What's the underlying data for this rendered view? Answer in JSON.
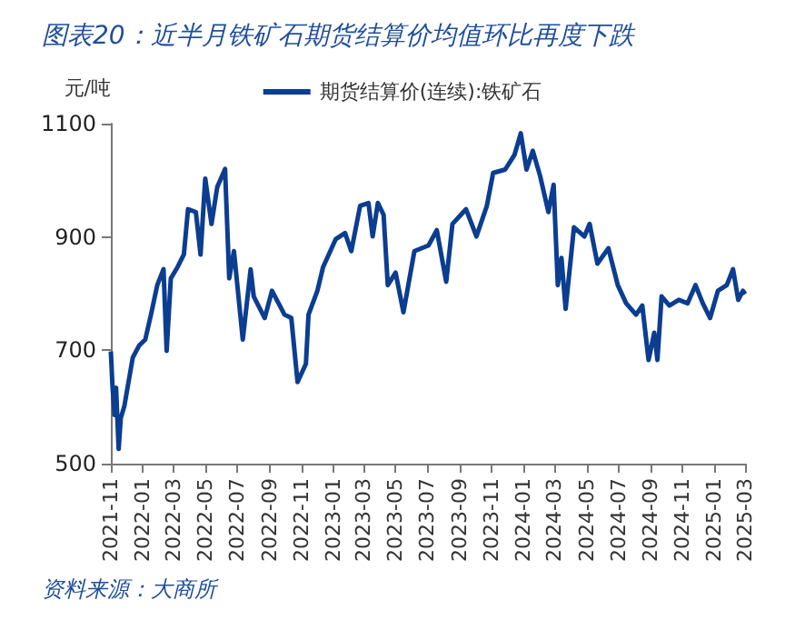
{
  "chart_data": {
    "type": "line",
    "title": "图表20：近半月铁矿石期货结算价均值环比再度下跌",
    "ylabel": "元/吨",
    "annotations": [
      "资料来源：大商所"
    ],
    "x": [
      "2021-11-01",
      "2021-11-04",
      "2021-11-08",
      "2021-11-11",
      "2021-11-16",
      "2021-11-20",
      "2021-11-27",
      "2021-12-13",
      "2021-12-25",
      "2022-01-06",
      "2022-01-17",
      "2022-01-29",
      "2022-02-10",
      "2022-02-16",
      "2022-02-24",
      "2022-03-09",
      "2022-03-21",
      "2022-03-29",
      "2022-04-13",
      "2022-04-22",
      "2022-05-01",
      "2022-05-13",
      "2022-05-24",
      "2022-06-08",
      "2022-06-16",
      "2022-06-25",
      "2022-07-12",
      "2022-07-27",
      "2022-08-02",
      "2022-08-23",
      "2022-09-06",
      "2022-09-30",
      "2022-10-13",
      "2022-10-25",
      "2022-11-10",
      "2022-11-15",
      "2022-12-02",
      "2022-12-13",
      "2023-01-06",
      "2023-01-24",
      "2023-02-05",
      "2023-02-22",
      "2023-03-10",
      "2023-03-18",
      "2023-03-28",
      "2023-04-08",
      "2023-04-16",
      "2023-05-01",
      "2023-05-16",
      "2023-06-06",
      "2023-07-03",
      "2023-07-19",
      "2023-08-06",
      "2023-08-18",
      "2023-09-13",
      "2023-10-03",
      "2023-10-23",
      "2023-11-04",
      "2023-11-27",
      "2023-12-15",
      "2023-12-27",
      "2024-01-07",
      "2024-01-19",
      "2024-02-02",
      "2024-02-18",
      "2024-02-28",
      "2024-03-07",
      "2024-03-14",
      "2024-03-22",
      "2024-04-07",
      "2024-04-27",
      "2024-05-07",
      "2024-05-22",
      "2024-06-12",
      "2024-06-30",
      "2024-07-16",
      "2024-08-04",
      "2024-08-16",
      "2024-08-28",
      "2024-09-08",
      "2024-09-14",
      "2024-09-22",
      "2024-10-07",
      "2024-10-25",
      "2024-11-11",
      "2024-11-26",
      "2024-12-10",
      "2024-12-24",
      "2025-01-08",
      "2025-01-25",
      "2025-02-06",
      "2025-02-16",
      "2025-02-25",
      "2025-03-01"
    ],
    "series": [
      {
        "name": "期货结算价(连续):铁矿石",
        "color": "#0b3d91",
        "values": [
          698,
          639,
          586,
          634,
          526,
          580,
          602,
          687,
          708,
          719,
          763,
          815,
          843,
          699,
          827,
          847,
          869,
          949,
          944,
          869,
          1003,
          923,
          988,
          1020,
          827,
          875,
          719,
          843,
          795,
          757,
          805,
          763,
          757,
          644,
          676,
          763,
          805,
          847,
          896,
          907,
          875,
          955,
          960,
          901,
          960,
          939,
          815,
          837,
          767,
          875,
          885,
          912,
          821,
          923,
          949,
          901,
          955,
          1013,
          1019,
          1045,
          1083,
          1019,
          1052,
          1008,
          944,
          992,
          815,
          863,
          773,
          917,
          901,
          923,
          853,
          880,
          815,
          783,
          763,
          779,
          683,
          731,
          683,
          795,
          779,
          789,
          783,
          815,
          783,
          757,
          805,
          815,
          843,
          789,
          805,
          799
        ]
      }
    ],
    "xlim": [
      "2021-11",
      "2025-03"
    ],
    "xticks": [
      "2021-11",
      "2022-01",
      "2022-03",
      "2022-05",
      "2022-07",
      "2022-09",
      "2022-11",
      "2023-01",
      "2023-03",
      "2023-05",
      "2023-07",
      "2023-09",
      "2023-11",
      "2024-01",
      "2024-03",
      "2024-05",
      "2024-07",
      "2024-09",
      "2024-11",
      "2025-01",
      "2025-03"
    ],
    "ylim": [
      500,
      1100
    ],
    "yticks": [
      500,
      700,
      900,
      1100
    ],
    "grid": false,
    "legend": "top",
    "marker": "none",
    "line_style": "solid"
  }
}
